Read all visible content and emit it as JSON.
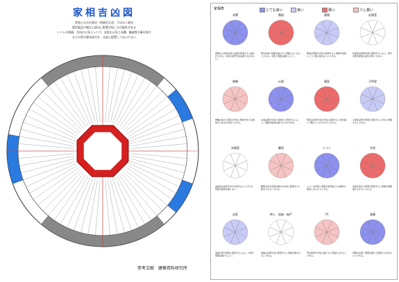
{
  "left": {
    "title": "家相吉凶図",
    "subtitle_lines": [
      "家相上の方位表記（地磁石の北）ではなく磁北",
      "電気製品や鏡など部位に影響が起こる可能性がある",
      "トイレの便器、台所の火気とシンク、浴室の火気と浴槽、機器等の事を指す",
      "などの家の基本部分を、吉凶に配置してはいけない"
    ],
    "credit": "参考文献　建築資料研究所"
  },
  "right": {
    "header": "家相表",
    "legend": [
      {
        "label": "とても良い",
        "color": "#8c90ee"
      },
      {
        "label": "良い",
        "color": "#c8cbf6"
      },
      {
        "label": "悪い",
        "color": "#ee6a6a"
      },
      {
        "label": "少し悪い",
        "color": "#f6c4c4"
      }
    ],
    "cells": [
      {
        "name": "玄関",
        "desc": "東南から北東の間に玄関を配置すると運気が上がる。北東の鬼門方位は避けるのがよい。"
      },
      {
        "name": "階段",
        "desc": "家の中央に階段を設けると家相上よくないとされる。北東と南西は避けること。"
      },
      {
        "name": "客間",
        "desc": "客間は南東の方位に配置すると家族や来客にとって居心地がよいとされる。"
      },
      {
        "name": "応接室",
        "desc": "応接室は東南や南に配置するとよい。西や北西の配置も運気を落とさない。"
      },
      {
        "name": "神棚",
        "desc": "神棚は北から西北の方位に南向きまたは東向きに祀るのが吉とされる。"
      },
      {
        "name": "仏壇",
        "desc": "仏壇は西北や北に東向きに安置するとよい。南西の配置は避けるべきである。"
      },
      {
        "name": "寝室",
        "desc": "寝室は北西や北の方位に配置すると落ち着いて眠ることができるとされる。"
      },
      {
        "name": "子供室",
        "desc": "子供室は東や東南に配置すると元気に成長するとされる。"
      },
      {
        "name": "夫婦室",
        "desc": "夫婦室は北西や北の方位がよいとされる。南西の配置も悪くない。"
      },
      {
        "name": "書斎",
        "desc": "書斎は北や北西の静かな方位に配置すると集中できるとされる。"
      },
      {
        "name": "トイレ",
        "desc": "トイレは北東と南西の鬼門線上には絶対に配置しないようにする。"
      },
      {
        "name": "台所",
        "desc": "台所は東から東南に配置すると家族の健康運が上がるとされる。"
      },
      {
        "name": "浴室",
        "desc": "浴室は東や東南に配置するとよい。北東と南西は避けること。"
      },
      {
        "name": "押入・収納・納戸",
        "desc": "収納は北西や北に配置すると財運が保たれるとされる。"
      },
      {
        "name": "門",
        "desc": "門は東南の方位に設けると家運が上がるとされる。"
      },
      {
        "name": "車庫",
        "desc": "車庫は北東と南西を避けて配置するのがよいとされる。"
      }
    ]
  }
}
